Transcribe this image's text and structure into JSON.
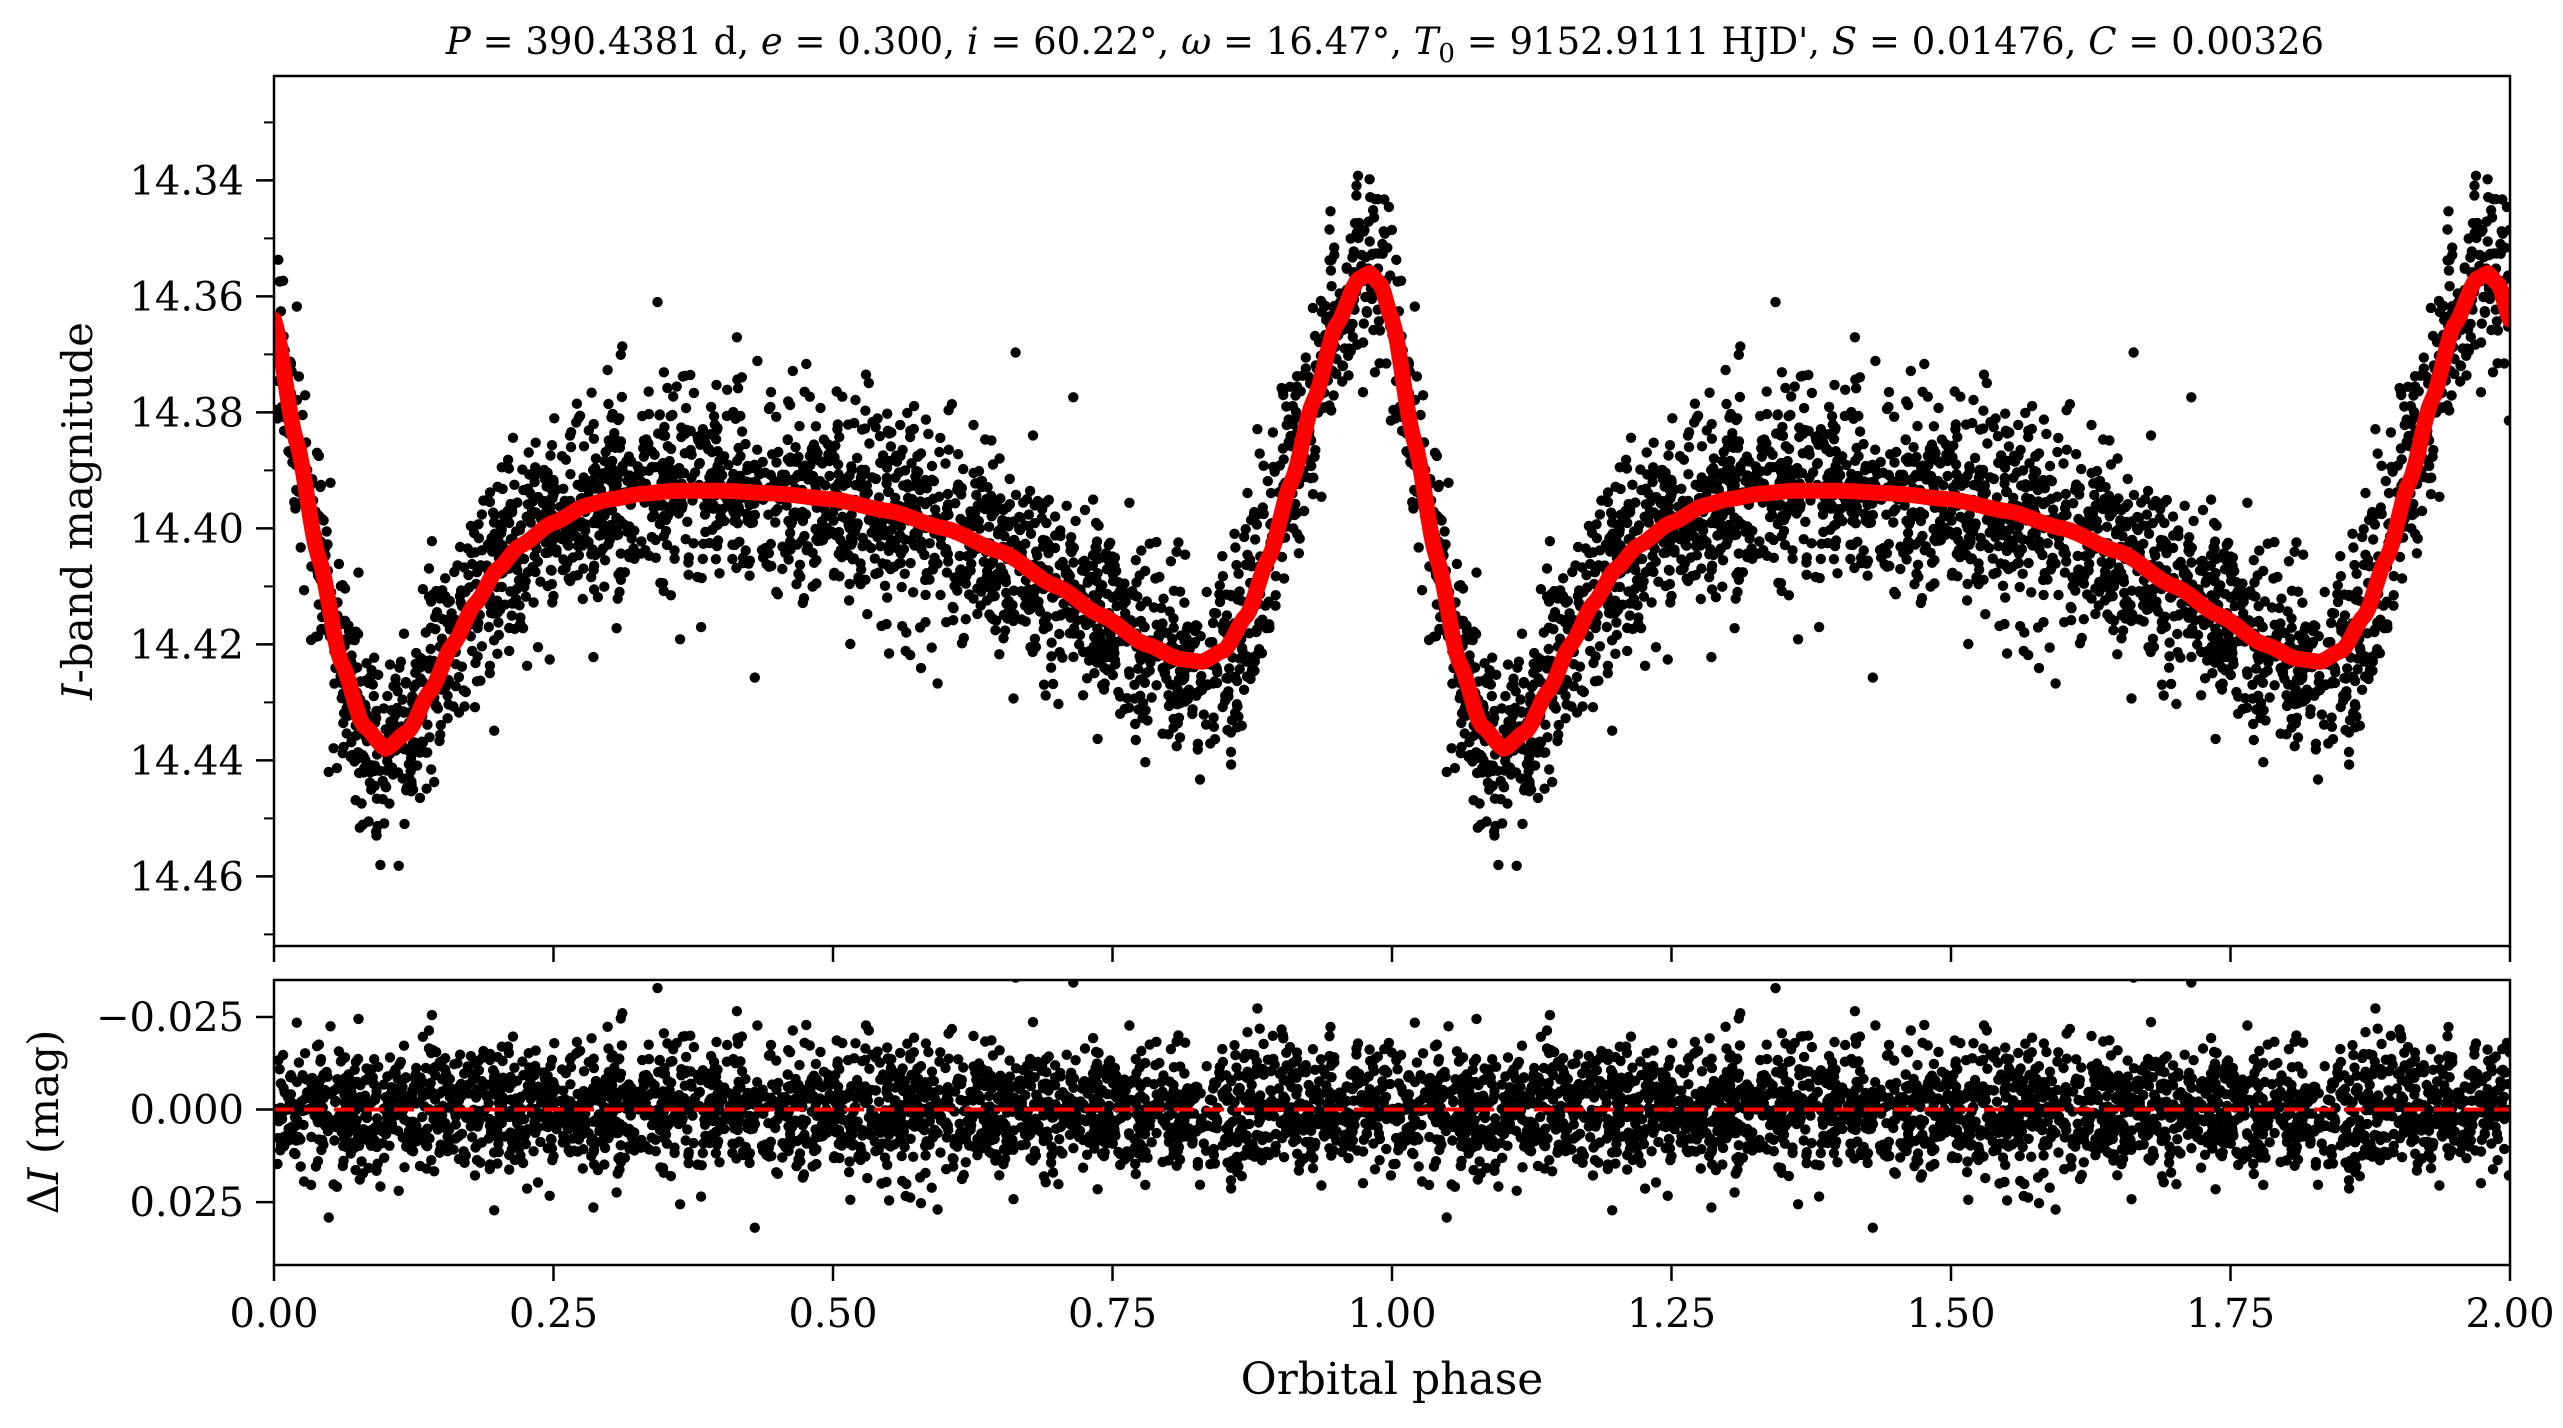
{
  "chart_data": [
    {
      "type": "scatter",
      "panel": "light-curve",
      "title": "P = 390.4381 d, e = 0.300, i = 60.22°, ω = 16.47°, T0 = 9152.9111 HJD', S = 0.01476, C = 0.00326",
      "title_parts": {
        "P_sym": "P",
        "P_val": " = 390.4381 d, ",
        "e_sym": "e",
        "e_val": " = 0.300, ",
        "i_sym": "i",
        "i_val": " = 60.22°, ",
        "w_sym": "ω",
        "w_val": " = 16.47°, ",
        "T_sym": "T",
        "T_sub": "0",
        "T_val": " = 9152.9111 HJD', ",
        "S_sym": "S",
        "S_val": " = 0.01476, ",
        "C_sym": "C",
        "C_val": " = 0.00326"
      },
      "xlabel": "Orbital phase",
      "ylabel": "I-band magnitude",
      "ylabel_sym": "I",
      "ylabel_rest": "-band magnitude",
      "xlim": [
        0.0,
        2.0
      ],
      "ylim": [
        14.472,
        14.322
      ],
      "y_inverted": true,
      "yticks": [
        14.34,
        14.36,
        14.38,
        14.4,
        14.42,
        14.44,
        14.46
      ],
      "ytick_labels": [
        "14.34",
        "14.36",
        "14.38",
        "14.40",
        "14.42",
        "14.44",
        "14.46"
      ],
      "xticks": [
        0.0,
        0.25,
        0.5,
        0.75,
        1.0,
        1.25,
        1.5,
        1.75,
        2.0
      ],
      "grid": false,
      "series": [
        {
          "kind": "observed-points",
          "color": "#000000",
          "note_points_count_visible": "dense cloud, repeated at phase + 1",
          "samples": [
            [
              0.0,
              14.364
            ],
            [
              0.02,
              14.378
            ],
            [
              0.04,
              14.398
            ],
            [
              0.06,
              14.418
            ],
            [
              0.08,
              14.432
            ],
            [
              0.1,
              14.437
            ],
            [
              0.12,
              14.432
            ],
            [
              0.14,
              14.424
            ],
            [
              0.16,
              14.418
            ],
            [
              0.18,
              14.412
            ],
            [
              0.2,
              14.405
            ],
            [
              0.22,
              14.402
            ],
            [
              0.25,
              14.398
            ],
            [
              0.3,
              14.395
            ],
            [
              0.35,
              14.394
            ],
            [
              0.4,
              14.394
            ],
            [
              0.45,
              14.395
            ],
            [
              0.5,
              14.396
            ],
            [
              0.55,
              14.398
            ],
            [
              0.6,
              14.401
            ],
            [
              0.65,
              14.404
            ],
            [
              0.7,
              14.409
            ],
            [
              0.75,
              14.416
            ],
            [
              0.8,
              14.422
            ],
            [
              0.83,
              14.423
            ],
            [
              0.86,
              14.418
            ],
            [
              0.9,
              14.403
            ],
            [
              0.94,
              14.378
            ],
            [
              0.98,
              14.356
            ],
            [
              1.0,
              14.364
            ]
          ]
        },
        {
          "kind": "model-curve",
          "color": "#ff0000",
          "x": [
            0.0,
            0.02,
            0.04,
            0.06,
            0.08,
            0.1,
            0.12,
            0.14,
            0.16,
            0.18,
            0.2,
            0.22,
            0.25,
            0.28,
            0.3,
            0.33,
            0.36,
            0.4,
            0.45,
            0.5,
            0.55,
            0.6,
            0.65,
            0.7,
            0.74,
            0.78,
            0.81,
            0.83,
            0.85,
            0.87,
            0.89,
            0.91,
            0.93,
            0.95,
            0.97,
            0.98,
            0.99,
            1.0
          ],
          "y": [
            14.364,
            14.385,
            14.405,
            14.423,
            14.434,
            14.438,
            14.435,
            14.428,
            14.42,
            14.413,
            14.407,
            14.403,
            14.399,
            14.396,
            14.395,
            14.394,
            14.3935,
            14.3935,
            14.394,
            14.395,
            14.397,
            14.4,
            14.404,
            14.41,
            14.415,
            14.42,
            14.4225,
            14.423,
            14.421,
            14.415,
            14.405,
            14.392,
            14.378,
            14.365,
            14.357,
            14.356,
            14.358,
            14.364
          ]
        }
      ]
    },
    {
      "type": "scatter",
      "panel": "residuals",
      "xlabel": "Orbital phase",
      "ylabel": "ΔI (mag)",
      "ylabel_delta": "Δ",
      "ylabel_sym": "I",
      "ylabel_rest": " (mag)",
      "xlim": [
        0.0,
        2.0
      ],
      "ylim": [
        0.042,
        -0.035
      ],
      "y_inverted": true,
      "yticks": [
        -0.025,
        0.0,
        0.025
      ],
      "ytick_labels": [
        "−0.025",
        "0.000",
        "0.025"
      ],
      "xticks": [
        0.0,
        0.25,
        0.5,
        0.75,
        1.0,
        1.25,
        1.5,
        1.75,
        2.0
      ],
      "xtick_labels": [
        "0.00",
        "0.25",
        "0.50",
        "0.75",
        "1.00",
        "1.25",
        "1.50",
        "1.75",
        "2.00"
      ],
      "grid": false,
      "series": [
        {
          "kind": "residual-points",
          "color": "#000000",
          "spread": 0.01
        },
        {
          "kind": "zero-line",
          "color": "#ff0000",
          "style": "dashed",
          "y": 0.0
        }
      ]
    }
  ]
}
